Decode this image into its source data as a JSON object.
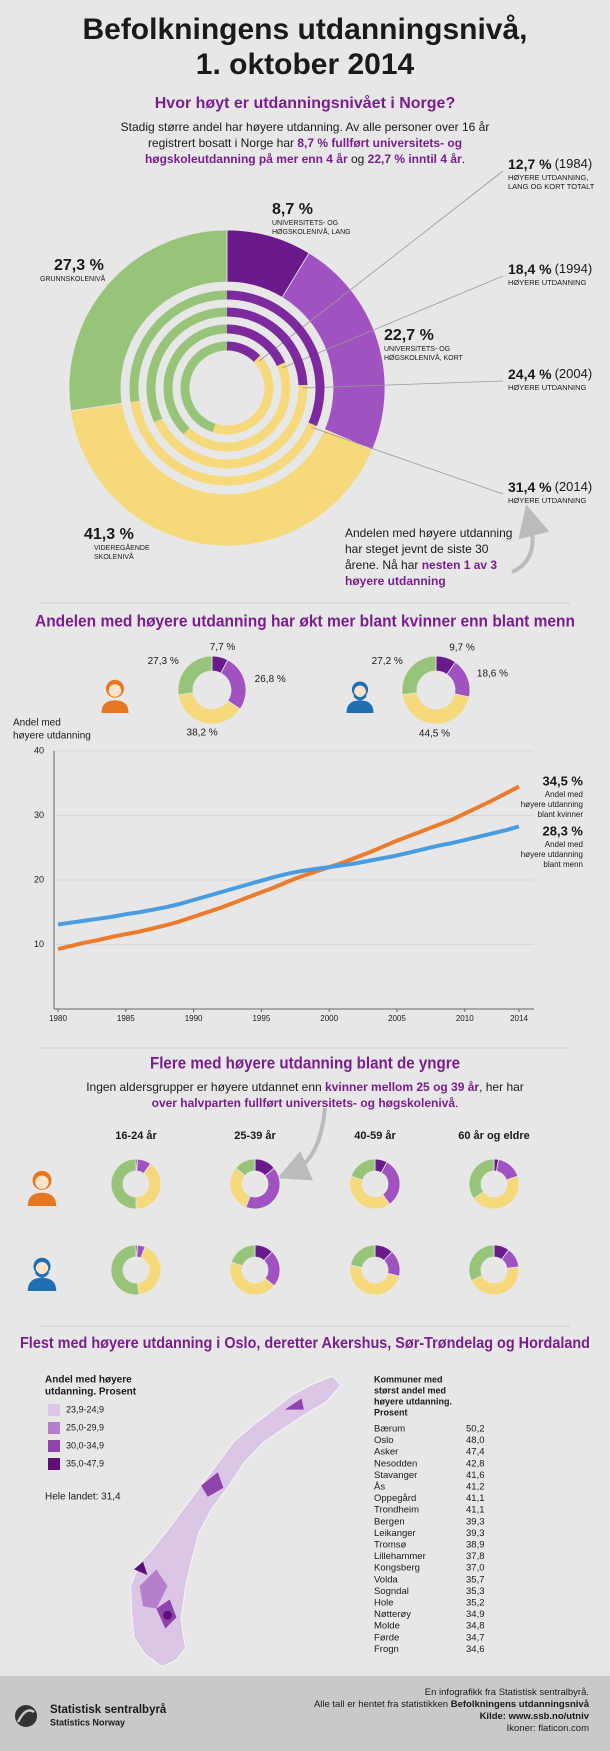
{
  "header": {
    "title": [
      "Befolkningens utdanningsnivå,",
      "1. oktober 2014"
    ]
  },
  "section1": {
    "heading": "Hvor høyt er utdanningsnivået i Norge?",
    "intro": [
      [
        {
          "text": "Stadig større andel har høyere utdanning. Av alle personer over 16 år"
        }
      ],
      [
        {
          "text": "registrert bosatt i Norge har "
        },
        {
          "text": "8,7 % fullført universitets- og",
          "em": true
        }
      ],
      [
        {
          "text": "høgskoleutdanning på mer enn 4 år",
          "em": true
        },
        {
          "text": " og "
        },
        {
          "text": "22,7 % inntil 4 år",
          "em": true
        },
        {
          "text": "."
        }
      ]
    ],
    "note": [
      [
        {
          "text": "Andelen med høyere utdanning"
        }
      ],
      [
        {
          "text": "har steget jevnt de siste 30"
        }
      ],
      [
        {
          "text": "årene. Nå har "
        },
        {
          "text": "nesten 1 av 3",
          "em": true
        }
      ],
      [
        {
          "text": "høyere utdanning",
          "em": true
        }
      ]
    ]
  },
  "section2": {
    "heading": "Andelen med høyere utdanning har økt mer blant kvinner enn blant menn",
    "y_axis_label": [
      "Andel med",
      "høyere utdanning"
    ]
  },
  "section3": {
    "heading": "Flere med høyere utdanning blant de yngre",
    "intro": [
      [
        {
          "text": "Ingen aldersgrupper er høyere utdannet enn "
        },
        {
          "text": "kvinner mellom 25 og 39 år",
          "em": true
        },
        {
          "text": ", her har"
        }
      ],
      [
        {
          "text": "over halvparten fullført universitets- og høgskolenivå",
          "em": true
        },
        {
          "text": "."
        }
      ]
    ]
  },
  "section4": {
    "heading": "Flest med høyere utdanning i Oslo, deretter Akershus, Sør-Trøndelag og Hordaland",
    "legend": {
      "title": [
        "Andel med høyere",
        "utdanning. Prosent"
      ],
      "classes": [
        {
          "label": "23,9-24,9",
          "color": "#dcc6e6"
        },
        {
          "label": "25,0-29,9",
          "color": "#b67fcb"
        },
        {
          "label": "30,0-34,9",
          "color": "#9043ac"
        },
        {
          "label": "35,0-47,9",
          "color": "#5c0f78"
        }
      ],
      "country": "Hele landet: 31,4"
    },
    "table": {
      "title": [
        "Kommuner med",
        "størst andel med",
        "høyere utdanning.",
        "Prosent"
      ],
      "rows": [
        [
          "Bærum",
          "50,2"
        ],
        [
          "Oslo",
          "48,0"
        ],
        [
          "Asker",
          "47,4"
        ],
        [
          "Nesodden",
          "42,8"
        ],
        [
          "Stavanger",
          "41,6"
        ],
        [
          "Ås",
          "41,2"
        ],
        [
          "Oppegård",
          "41,1"
        ],
        [
          "Trondheim",
          "41,1"
        ],
        [
          "Bergen",
          "39,3"
        ],
        [
          "Leikanger",
          "39,3"
        ],
        [
          "Tromsø",
          "38,9"
        ],
        [
          "Lillehammer",
          "37,8"
        ],
        [
          "Kongsberg",
          "37,0"
        ],
        [
          "Volda",
          "35,7"
        ],
        [
          "Sogndal",
          "35,3"
        ],
        [
          "Hole",
          "35,2"
        ],
        [
          "Nøtterøy",
          "34,9"
        ],
        [
          "Molde",
          "34,8"
        ],
        [
          "Førde",
          "34,7"
        ],
        [
          "Frogn",
          "34,6"
        ]
      ]
    }
  },
  "footer": {
    "lines": [
      [
        {
          "text": "En infografikk fra Statistisk sentralbyrå."
        }
      ],
      [
        {
          "text": "Alle tall er hentet fra statistikken "
        },
        {
          "text": "Befolkningens utdanningsnivå",
          "bold": true
        }
      ],
      [
        {
          "text": "Kilde: www.ssb.no/utniv",
          "bold": true
        }
      ],
      [
        {
          "text": "Ikoner: flaticon.com"
        }
      ]
    ],
    "logo": [
      "Statistisk sentralbyrå",
      "Statistics Norway"
    ]
  },
  "chart_data": [
    {
      "type": "donut",
      "categories": [
        [
          "UNIVERSITETS- OG",
          "HØGSKOLENIVÅ, LANG"
        ],
        [
          "UNIVERSITETS- OG",
          "HØGSKOLENIVÅ, KORT"
        ],
        [
          "VIDEREGÅENDE",
          "SKOLENIVÅ"
        ],
        [
          "GRUNNSKOLENIVÅ"
        ]
      ],
      "values": [
        8.7,
        22.7,
        41.3,
        27.3
      ],
      "value_labels": [
        "8,7 %",
        "22,7 %",
        "41,3 %",
        "27,3 %"
      ],
      "colors": [
        "#6b1a8c",
        "#a052c0",
        "#f5d97a",
        "#98c47a"
      ]
    },
    {
      "type": "rings",
      "categories": [
        "(1984)",
        "(1994)",
        "(2004)",
        "(2014)"
      ],
      "values": [
        12.7,
        18.4,
        24.4,
        31.4
      ],
      "value_labels": [
        "12,7 %",
        "18,4 %",
        "24,4 %",
        "31,4 %"
      ],
      "captions": [
        [
          "HØYERE UTDANNING,",
          "LANG OG KORT TOTALT"
        ],
        [
          "HØYERE UTDANNING"
        ],
        [
          "HØYERE UTDANNING"
        ],
        [
          "HØYERE UTDANNING"
        ]
      ],
      "basic_school": [
        45,
        38,
        32,
        27.3
      ],
      "colors": [
        "#7d2a9e",
        "#f5d97a",
        "#98c47a"
      ]
    },
    {
      "type": "donut",
      "values": [
        7.7,
        26.8,
        38.2,
        27.3
      ],
      "value_labels": [
        "7,7 %",
        "26,8 %",
        "38,2 %",
        "27,3 %"
      ],
      "colors": [
        "#6b1a8c",
        "#a052c0",
        "#f5d97a",
        "#98c47a"
      ]
    },
    {
      "type": "donut",
      "values": [
        9.7,
        18.6,
        44.5,
        27.2
      ],
      "value_labels": [
        "9,7 %",
        "18,6 %",
        "44,5 %",
        "27,2 %"
      ],
      "colors": [
        "#6b1a8c",
        "#a052c0",
        "#f5d97a",
        "#98c47a"
      ]
    },
    {
      "type": "line",
      "x": [
        1980,
        1981,
        1982,
        1983,
        1984,
        1985,
        1986,
        1987,
        1988,
        1989,
        1990,
        1991,
        1992,
        1993,
        1994,
        1995,
        1996,
        1997,
        1998,
        1999,
        2000,
        2001,
        2002,
        2003,
        2004,
        2005,
        2006,
        2007,
        2008,
        2009,
        2010,
        2011,
        2012,
        2013,
        2014
      ],
      "xlim": [
        1980,
        2014
      ],
      "xticks": [
        1980,
        1985,
        1990,
        1995,
        2000,
        2005,
        2010,
        2014
      ],
      "ylim": [
        0,
        40
      ],
      "yticks": [
        10,
        20,
        30,
        40
      ],
      "grid": true,
      "series": [
        {
          "name": [
            "Andel med",
            "høyere utdanning",
            "blant kvinner"
          ],
          "color": "#ee7b2c",
          "end_label": "34,5 %",
          "values": [
            9.3,
            9.8,
            10.3,
            10.7,
            11.2,
            11.6,
            12.0,
            12.5,
            13.0,
            13.6,
            14.3,
            15.0,
            15.7,
            16.5,
            17.3,
            18.1,
            18.9,
            19.8,
            20.6,
            21.3,
            22.0,
            22.7,
            23.5,
            24.3,
            25.2,
            26.1,
            26.9,
            27.7,
            28.5,
            29.3,
            30.3,
            31.3,
            32.3,
            33.4,
            34.5
          ]
        },
        {
          "name": [
            "Andel med",
            "høyere utdanning",
            "blant menn"
          ],
          "color": "#4a9ce0",
          "end_label": "28,3 %",
          "values": [
            13.1,
            13.4,
            13.7,
            14.0,
            14.3,
            14.7,
            15.0,
            15.4,
            15.8,
            16.3,
            16.9,
            17.5,
            18.1,
            18.7,
            19.3,
            19.9,
            20.5,
            21.0,
            21.4,
            21.7,
            22.0,
            22.3,
            22.6,
            23.0,
            23.4,
            23.8,
            24.3,
            24.8,
            25.3,
            25.7,
            26.2,
            26.7,
            27.2,
            27.7,
            28.3
          ]
        }
      ]
    },
    {
      "type": "donut_grid",
      "categories": [
        "16-24 år",
        "25-39 år",
        "40-59 år",
        "60 år og eldre"
      ],
      "colors": [
        "#6b1a8c",
        "#a052c0",
        "#f5d97a",
        "#98c47a"
      ],
      "series": [
        {
          "values": [
            [
              1,
              9,
              40,
              50
            ],
            [
              14,
              42,
              30,
              14
            ],
            [
              8,
              32,
              40,
              20
            ],
            [
              3,
              17,
              45,
              35
            ]
          ]
        },
        {
          "values": [
            [
              1,
              5,
              42,
              52
            ],
            [
              12,
              24,
              44,
              20
            ],
            [
              12,
              17,
              49,
              22
            ],
            [
              10,
              13,
              45,
              32
            ]
          ]
        }
      ]
    }
  ]
}
